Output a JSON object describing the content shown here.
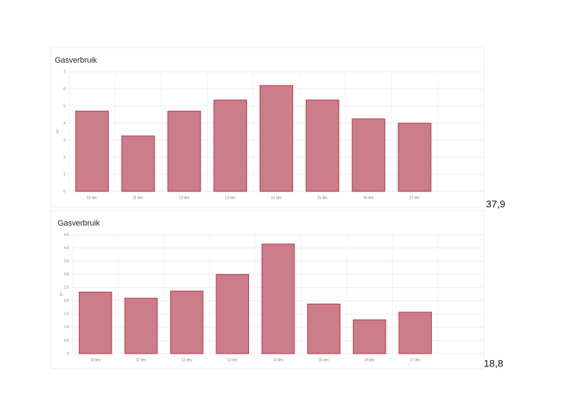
{
  "chart_data": [
    {
      "type": "bar",
      "title": "Gasverbruik",
      "y_label": "m³",
      "categories": [
        "10 dec",
        "11 dec",
        "12 dec",
        "13 dec",
        "14 dec",
        "15 dec",
        "16 dec",
        "17 dec",
        null
      ],
      "values": [
        4.7,
        3.25,
        4.7,
        5.35,
        6.2,
        5.35,
        4.25,
        4.0,
        null
      ],
      "color": "#cb7d89",
      "edge_color": "#b8344c",
      "ylim": [
        0,
        7
      ],
      "yticks": [
        0,
        1,
        2,
        3,
        4,
        5,
        6,
        7
      ],
      "grid": true,
      "total": "37,9"
    },
    {
      "type": "bar",
      "title": "Gasverbruik",
      "y_label": "m³",
      "categories": [
        "10 dec",
        "11 dec",
        "12 dec",
        "13 dec",
        "14 dec",
        "15 dec",
        "16 dec",
        "17 dec",
        null
      ],
      "values": [
        2.33,
        2.1,
        2.37,
        3.0,
        4.15,
        1.88,
        1.28,
        1.57,
        null
      ],
      "color": "#cb7d89",
      "edge_color": "#b8344c",
      "ylim": [
        0,
        4.5
      ],
      "yticks": [
        0,
        {
          "value": 0.5,
          "label": "0,5"
        },
        {
          "value": 1,
          "label": "1,0"
        },
        {
          "value": 1.5,
          "label": "1,5"
        },
        {
          "value": 2,
          "label": "2,0"
        },
        {
          "value": 2.5,
          "label": "2,5"
        },
        {
          "value": 3,
          "label": "3,0"
        },
        {
          "value": 3.5,
          "label": "3,5"
        },
        {
          "value": 4,
          "label": "4,0"
        },
        {
          "value": 4.5,
          "label": "4,5"
        }
      ],
      "grid": true,
      "total": "18,8"
    }
  ]
}
